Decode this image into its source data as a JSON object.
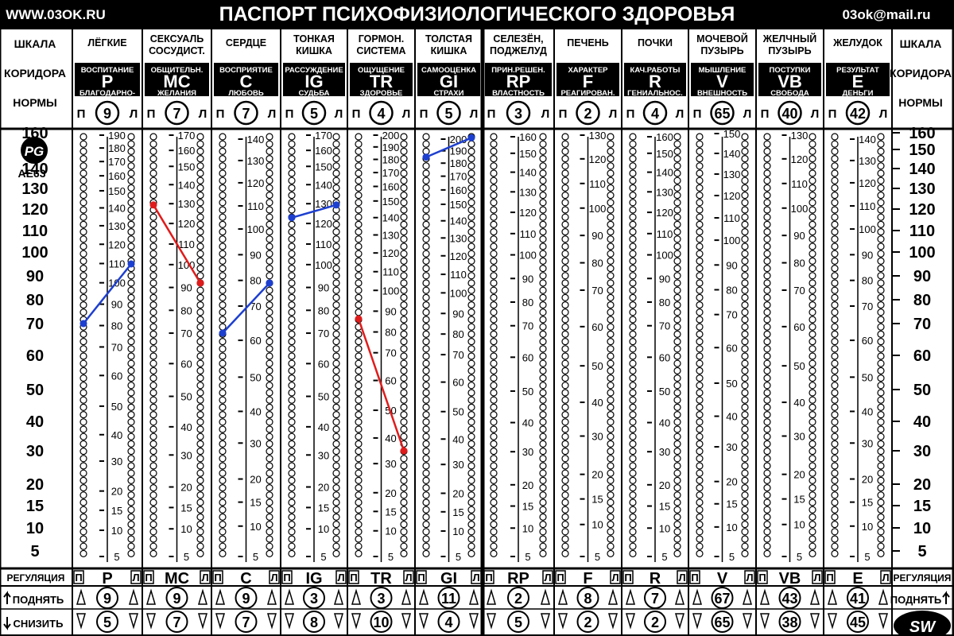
{
  "header": {
    "site": "WWW.03OK.RU",
    "title": "ПАСПОРТ ПСИХОФИЗИОЛОГИЧЕСКОГО ЗДОРОВЬЯ",
    "email": "03ok@mail.ru"
  },
  "scale_label": [
    "ШКАЛА",
    "КОРИДОРА",
    "НОРМЫ"
  ],
  "logo": {
    "text": "PG",
    "code": "AE63"
  },
  "regulation_label": "РЕГУЛЯЦИЯ",
  "raise_label": "ПОДНЯТЬ",
  "lower_label": "СНИЗИТЬ",
  "side_label_p": "П",
  "side_label_l": "Л",
  "sw_logo": "SW",
  "colors": {
    "blue": "#1d3fd0",
    "red": "#e01b1b"
  },
  "chart_data": {
    "type": "line",
    "scale_ticks": [
      5,
      10,
      15,
      20,
      30,
      40,
      50,
      60,
      70,
      80,
      90,
      100,
      110,
      120,
      130,
      140,
      150,
      160
    ],
    "columns": [
      {
        "organ": "ЛЁГКИЕ",
        "top": "ВОСПИТАНИЕ",
        "code": "P",
        "bottom": "БЛАГОДАРНО-",
        "circle": "9",
        "ticks": [
          190,
          180,
          170,
          160,
          150,
          140,
          130,
          120,
          110,
          100,
          90,
          80,
          70,
          60,
          50,
          40,
          30,
          20,
          15,
          10,
          5
        ],
        "reg": "P",
        "up": "9",
        "down": "5",
        "line": {
          "color": "blue",
          "from": 70,
          "to": 95
        }
      },
      {
        "organ": "СЕКСУАЛЬ СОСУДИСТ.",
        "top": "ОБЩИТЕЛЬН.",
        "code": "MC",
        "bottom": "ЖЕЛАНИЯ",
        "circle": "7",
        "ticks": [
          170,
          160,
          150,
          140,
          130,
          120,
          110,
          100,
          90,
          80,
          70,
          60,
          50,
          40,
          30,
          20,
          15,
          10,
          5
        ],
        "reg": "MC",
        "up": "9",
        "down": "7",
        "line": {
          "color": "red",
          "from": 122,
          "to": 87
        }
      },
      {
        "organ": "СЕРДЦЕ",
        "top": "ВОСПРИЯТИЕ",
        "code": "C",
        "bottom": "ЛЮБОВЬ",
        "circle": "7",
        "ticks": [
          140,
          130,
          120,
          110,
          100,
          90,
          80,
          70,
          60,
          50,
          40,
          30,
          20,
          15,
          10,
          5
        ],
        "reg": "C",
        "up": "9",
        "down": "7",
        "line": {
          "color": "blue",
          "from": 67,
          "to": 87
        }
      },
      {
        "organ": "ТОНКАЯ КИШКА",
        "top": "РАССУЖДЕНИЕ",
        "code": "IG",
        "bottom": "СУДЬБА",
        "circle": "5",
        "ticks": [
          170,
          160,
          150,
          140,
          130,
          120,
          110,
          100,
          90,
          80,
          70,
          60,
          50,
          40,
          30,
          20,
          15,
          10,
          5
        ],
        "reg": "IG",
        "up": "3",
        "down": "8",
        "line": {
          "color": "blue",
          "from": 116,
          "to": 122
        }
      },
      {
        "organ": "ГОРМОН. СИСТЕМА",
        "top": "ОЩУЩЕНИЕ",
        "code": "TR",
        "bottom": "ЗДОРОВЬЕ",
        "circle": "4",
        "ticks": [
          200,
          190,
          180,
          170,
          160,
          150,
          140,
          130,
          120,
          110,
          100,
          90,
          80,
          70,
          60,
          50,
          40,
          30,
          20,
          15,
          10,
          5
        ],
        "reg": "TR",
        "up": "3",
        "down": "10",
        "line": {
          "color": "red",
          "from": 72,
          "to": 30
        }
      },
      {
        "organ": "ТОЛСТАЯ КИШКА",
        "top": "САМООЦЕНКА",
        "code": "GI",
        "bottom": "СТРАХИ",
        "circle": "5",
        "ticks": [
          200,
          190,
          180,
          170,
          160,
          150,
          140,
          130,
          120,
          110,
          100,
          90,
          80,
          70,
          60,
          50,
          40,
          30,
          20,
          15,
          10,
          5
        ],
        "reg": "GI",
        "up": "11",
        "down": "4",
        "line": {
          "color": "blue",
          "from": 146,
          "to": 157
        }
      },
      {
        "organ": "СЕЛЕЗЁН, ПОДЖЕЛУД",
        "top": "ПРИН.РЕШЕН.",
        "code": "RP",
        "bottom": "ВЛАСТНОСТЬ",
        "circle": "3",
        "ticks": [
          160,
          150,
          140,
          130,
          120,
          110,
          100,
          90,
          80,
          70,
          60,
          50,
          40,
          30,
          20,
          15,
          10,
          5
        ],
        "reg": "RP",
        "up": "2",
        "down": "5",
        "line": null
      },
      {
        "organ": "ПЕЧЕНЬ",
        "top": "ХАРАКТЕР",
        "code": "F",
        "bottom": "РЕАГИРОВАН.",
        "circle": "2",
        "ticks": [
          130,
          120,
          110,
          100,
          90,
          80,
          70,
          60,
          50,
          40,
          30,
          20,
          15,
          10,
          5
        ],
        "reg": "F",
        "up": "8",
        "down": "2",
        "line": null
      },
      {
        "organ": "ПОЧКИ",
        "top": "КАЧ.РАБОТЫ",
        "code": "R",
        "bottom": "ГЕНИАЛЬНОС.",
        "circle": "4",
        "ticks": [
          160,
          150,
          140,
          130,
          120,
          110,
          100,
          90,
          80,
          70,
          60,
          50,
          40,
          30,
          20,
          15,
          10,
          5
        ],
        "reg": "R",
        "up": "7",
        "down": "2",
        "line": null
      },
      {
        "organ": "МОЧЕВОЙ ПУЗЫРЬ",
        "top": "МЫШЛЕНИЕ",
        "code": "V",
        "bottom": "ВНЕШНОСТЬ",
        "circle": "65",
        "ticks": [
          150,
          140,
          130,
          120,
          110,
          100,
          90,
          80,
          70,
          60,
          50,
          40,
          30,
          20,
          15,
          10,
          5
        ],
        "reg": "V",
        "up": "67",
        "down": "65",
        "line": null
      },
      {
        "organ": "ЖЕЛЧНЫЙ ПУЗЫРЬ",
        "top": "ПОСТУПКИ",
        "code": "VB",
        "bottom": "СВОБОДА",
        "circle": "40",
        "ticks": [
          130,
          120,
          110,
          100,
          90,
          80,
          70,
          60,
          50,
          40,
          30,
          20,
          15,
          10,
          5
        ],
        "reg": "VB",
        "up": "43",
        "down": "38",
        "line": null
      },
      {
        "organ": "ЖЕЛУДОК",
        "top": "РЕЗУЛЬТАТ",
        "code": "E",
        "bottom": "ДЕНЬГИ",
        "circle": "42",
        "ticks": [
          140,
          130,
          120,
          110,
          100,
          90,
          80,
          70,
          60,
          50,
          40,
          30,
          20,
          15,
          10,
          5
        ],
        "reg": "E",
        "up": "41",
        "down": "45",
        "line": null
      }
    ]
  }
}
